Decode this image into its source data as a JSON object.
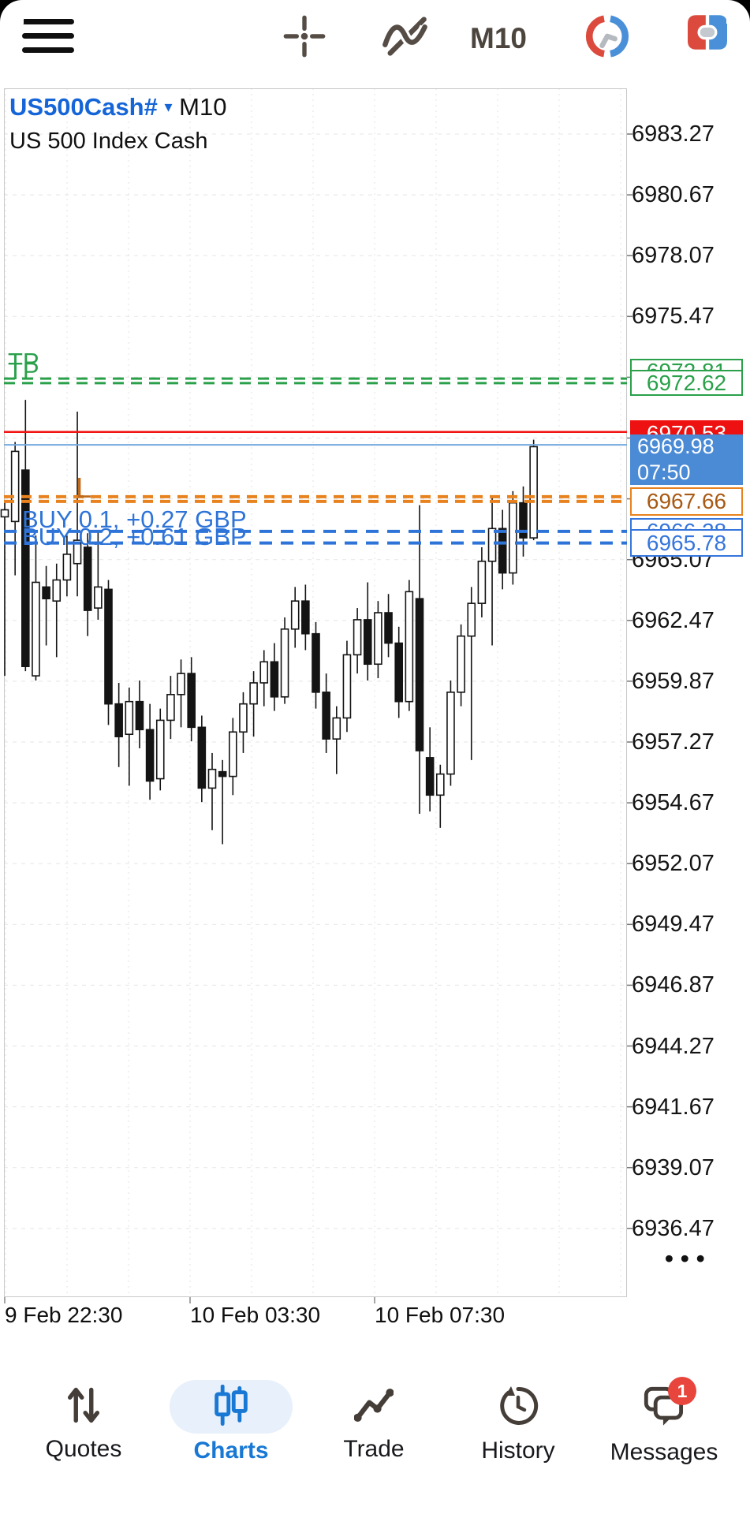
{
  "toolbar": {
    "menu_icon": "hamburger-menu",
    "crosshair_icon": "crosshair",
    "indicators_icon": "indicator-wave",
    "timeframe": "M10",
    "sessions_icon": "clock-red-blue",
    "one_click_icon": "buy-sell-panel"
  },
  "chart_header": {
    "symbol": "US500Cash#",
    "dropdown_icon": "▾",
    "timeframe": "M10",
    "description": "US 500 Index Cash"
  },
  "annotations": {
    "tp_labels": [
      "TP",
      "TP"
    ],
    "sl_label": "L",
    "positions": [
      {
        "line_label": "BUY 0.1,  +0.27 GBP",
        "price": "6966.28"
      },
      {
        "line_label": "BUY 0.2,  +0.61 GBP",
        "price": "6965.78"
      }
    ]
  },
  "price_markers": {
    "tp_boxes": [
      "6972.81",
      "6972.62"
    ],
    "ask": {
      "price": "6970.53"
    },
    "bid": {
      "price": "6969.98",
      "bar_time": "07:50"
    },
    "sl": {
      "price": "6967.66"
    }
  },
  "price_axis": {
    "labels": [
      "6983.27",
      "6980.67",
      "6978.07",
      "6975.47",
      "6965.07",
      "6962.47",
      "6959.87",
      "6957.27",
      "6954.67",
      "6952.07",
      "6949.47",
      "6946.87",
      "6944.27",
      "6941.67",
      "6939.07",
      "6936.47"
    ],
    "more_dots": "•••"
  },
  "time_axis": [
    {
      "label": "9 Feb 22:30"
    },
    {
      "label": "10 Feb 03:30"
    },
    {
      "label": "10 Feb 07:30"
    }
  ],
  "bottom_nav": {
    "items": [
      {
        "label": "Quotes",
        "icon": "arrows-up-down-icon",
        "active": false
      },
      {
        "label": "Charts",
        "icon": "candlestick-icon",
        "active": true
      },
      {
        "label": "Trade",
        "icon": "zigzag-line-icon",
        "active": false
      },
      {
        "label": "History",
        "icon": "clock-history-icon",
        "active": false
      },
      {
        "label": "Messages",
        "icon": "chat-bubbles-icon",
        "active": false,
        "badge": "1"
      }
    ]
  },
  "chart_data": {
    "type": "candlestick",
    "title": "US500Cash# M10",
    "symbol": "US500Cash#",
    "timeframe": "M10",
    "x_axis_labels": [
      "9 Feb 22:30",
      "10 Feb 03:30",
      "10 Feb 07:30"
    ],
    "ylim": [
      6934.5,
      6984.5
    ],
    "y_ticks": [
      6983.27,
      6980.67,
      6978.07,
      6975.47,
      6972.87,
      6970.27,
      6967.67,
      6965.07,
      6962.47,
      6959.87,
      6957.27,
      6954.67,
      6952.07,
      6949.47,
      6946.87,
      6944.27,
      6941.67,
      6939.07,
      6936.47
    ],
    "grid": {
      "horizontal": "dashed",
      "vertical": "dotted"
    },
    "price_lines": [
      {
        "name": "take-profit-1",
        "price": 6972.81,
        "color": "#2aa04a",
        "dash": "14,9",
        "width": 3
      },
      {
        "name": "take-profit-2",
        "price": 6972.62,
        "color": "#2aa04a",
        "dash": "14,9",
        "width": 3
      },
      {
        "name": "ask",
        "price": 6970.53,
        "color": "#f21313",
        "dash": "",
        "width": 2.5
      },
      {
        "name": "bid",
        "price": 6969.98,
        "color": "#74a9dd",
        "dash": "",
        "width": 2
      },
      {
        "name": "stop-loss-1",
        "price": 6967.76,
        "color": "#e8821e",
        "dash": "13,9",
        "width": 4
      },
      {
        "name": "stop-loss-2",
        "price": 6967.56,
        "color": "#e8821e",
        "dash": "13,9",
        "width": 4
      },
      {
        "name": "buy-position-1",
        "price": 6966.28,
        "color": "#2e74d8",
        "dash": "16,11",
        "width": 4
      },
      {
        "name": "buy-position-2",
        "price": 6965.78,
        "color": "#2e74d8",
        "dash": "16,11",
        "width": 4
      }
    ],
    "candles_format": [
      "open",
      "high",
      "low",
      "close"
    ],
    "candles": [
      [
        6966.9,
        6967.5,
        6960.1,
        6967.2
      ],
      [
        6966.7,
        6970.1,
        6964.4,
        6969.7
      ],
      [
        6968.9,
        6971.9,
        6960.3,
        6960.5
      ],
      [
        6960.1,
        6966.1,
        6959.9,
        6964.1
      ],
      [
        6963.9,
        6964.8,
        6961.4,
        6963.4
      ],
      [
        6963.3,
        6964.9,
        6960.9,
        6964.2
      ],
      [
        6964.2,
        6966.1,
        6963.5,
        6965.3
      ],
      [
        6964.9,
        6971.4,
        6963.5,
        6965.9
      ],
      [
        6965.6,
        6966.2,
        6961.8,
        6962.9
      ],
      [
        6963.0,
        6966.3,
        6962.5,
        6963.9
      ],
      [
        6963.8,
        6964.2,
        6958.0,
        6958.9
      ],
      [
        6958.9,
        6959.8,
        6956.2,
        6957.5
      ],
      [
        6957.6,
        6959.6,
        6955.4,
        6959.0
      ],
      [
        6959.0,
        6959.9,
        6957.0,
        6957.8
      ],
      [
        6957.8,
        6958.9,
        6954.8,
        6955.6
      ],
      [
        6955.7,
        6958.7,
        6955.2,
        6958.2
      ],
      [
        6958.2,
        6960.1,
        6957.4,
        6959.3
      ],
      [
        6959.3,
        6960.8,
        6957.9,
        6960.2
      ],
      [
        6960.2,
        6960.9,
        6957.3,
        6957.9
      ],
      [
        6957.9,
        6958.4,
        6954.7,
        6955.3
      ],
      [
        6955.3,
        6956.8,
        6953.5,
        6956.1
      ],
      [
        6956.0,
        6956.5,
        6952.9,
        6955.8
      ],
      [
        6955.8,
        6958.3,
        6955.0,
        6957.7
      ],
      [
        6957.7,
        6959.4,
        6956.8,
        6958.9
      ],
      [
        6958.9,
        6960.3,
        6957.5,
        6959.8
      ],
      [
        6959.8,
        6961.2,
        6958.8,
        6960.7
      ],
      [
        6960.7,
        6961.5,
        6958.6,
        6959.2
      ],
      [
        6959.2,
        6962.6,
        6958.9,
        6962.1
      ],
      [
        6962.1,
        6963.9,
        6961.3,
        6963.3
      ],
      [
        6963.3,
        6964.0,
        6961.2,
        6961.9
      ],
      [
        6961.9,
        6962.4,
        6958.7,
        6959.4
      ],
      [
        6959.4,
        6960.2,
        6956.8,
        6957.4
      ],
      [
        6957.4,
        6958.8,
        6955.9,
        6958.3
      ],
      [
        6958.3,
        6961.6,
        6957.7,
        6961.0
      ],
      [
        6961.0,
        6963.0,
        6960.2,
        6962.5
      ],
      [
        6962.5,
        6964.1,
        6959.9,
        6960.6
      ],
      [
        6960.6,
        6963.3,
        6960.0,
        6962.8
      ],
      [
        6962.8,
        6963.6,
        6960.9,
        6961.5
      ],
      [
        6961.5,
        6962.2,
        6958.3,
        6959.0
      ],
      [
        6959.0,
        6964.2,
        6958.6,
        6963.7
      ],
      [
        6963.4,
        6967.4,
        6954.2,
        6956.9
      ],
      [
        6956.6,
        6957.9,
        6954.3,
        6955.0
      ],
      [
        6955.0,
        6956.3,
        6953.6,
        6955.9
      ],
      [
        6955.9,
        6959.9,
        6955.4,
        6959.4
      ],
      [
        6959.4,
        6962.3,
        6958.8,
        6961.8
      ],
      [
        6961.8,
        6963.9,
        6956.5,
        6963.2
      ],
      [
        6963.2,
        6965.6,
        6962.6,
        6965.0
      ],
      [
        6965.0,
        6967.8,
        6961.4,
        6966.4
      ],
      [
        6966.4,
        6967.2,
        6963.8,
        6964.5
      ],
      [
        6964.5,
        6968.0,
        6964.0,
        6967.5
      ],
      [
        6967.5,
        6968.2,
        6965.2,
        6966.0
      ],
      [
        6966.0,
        6970.2,
        6965.9,
        6969.9
      ]
    ]
  }
}
